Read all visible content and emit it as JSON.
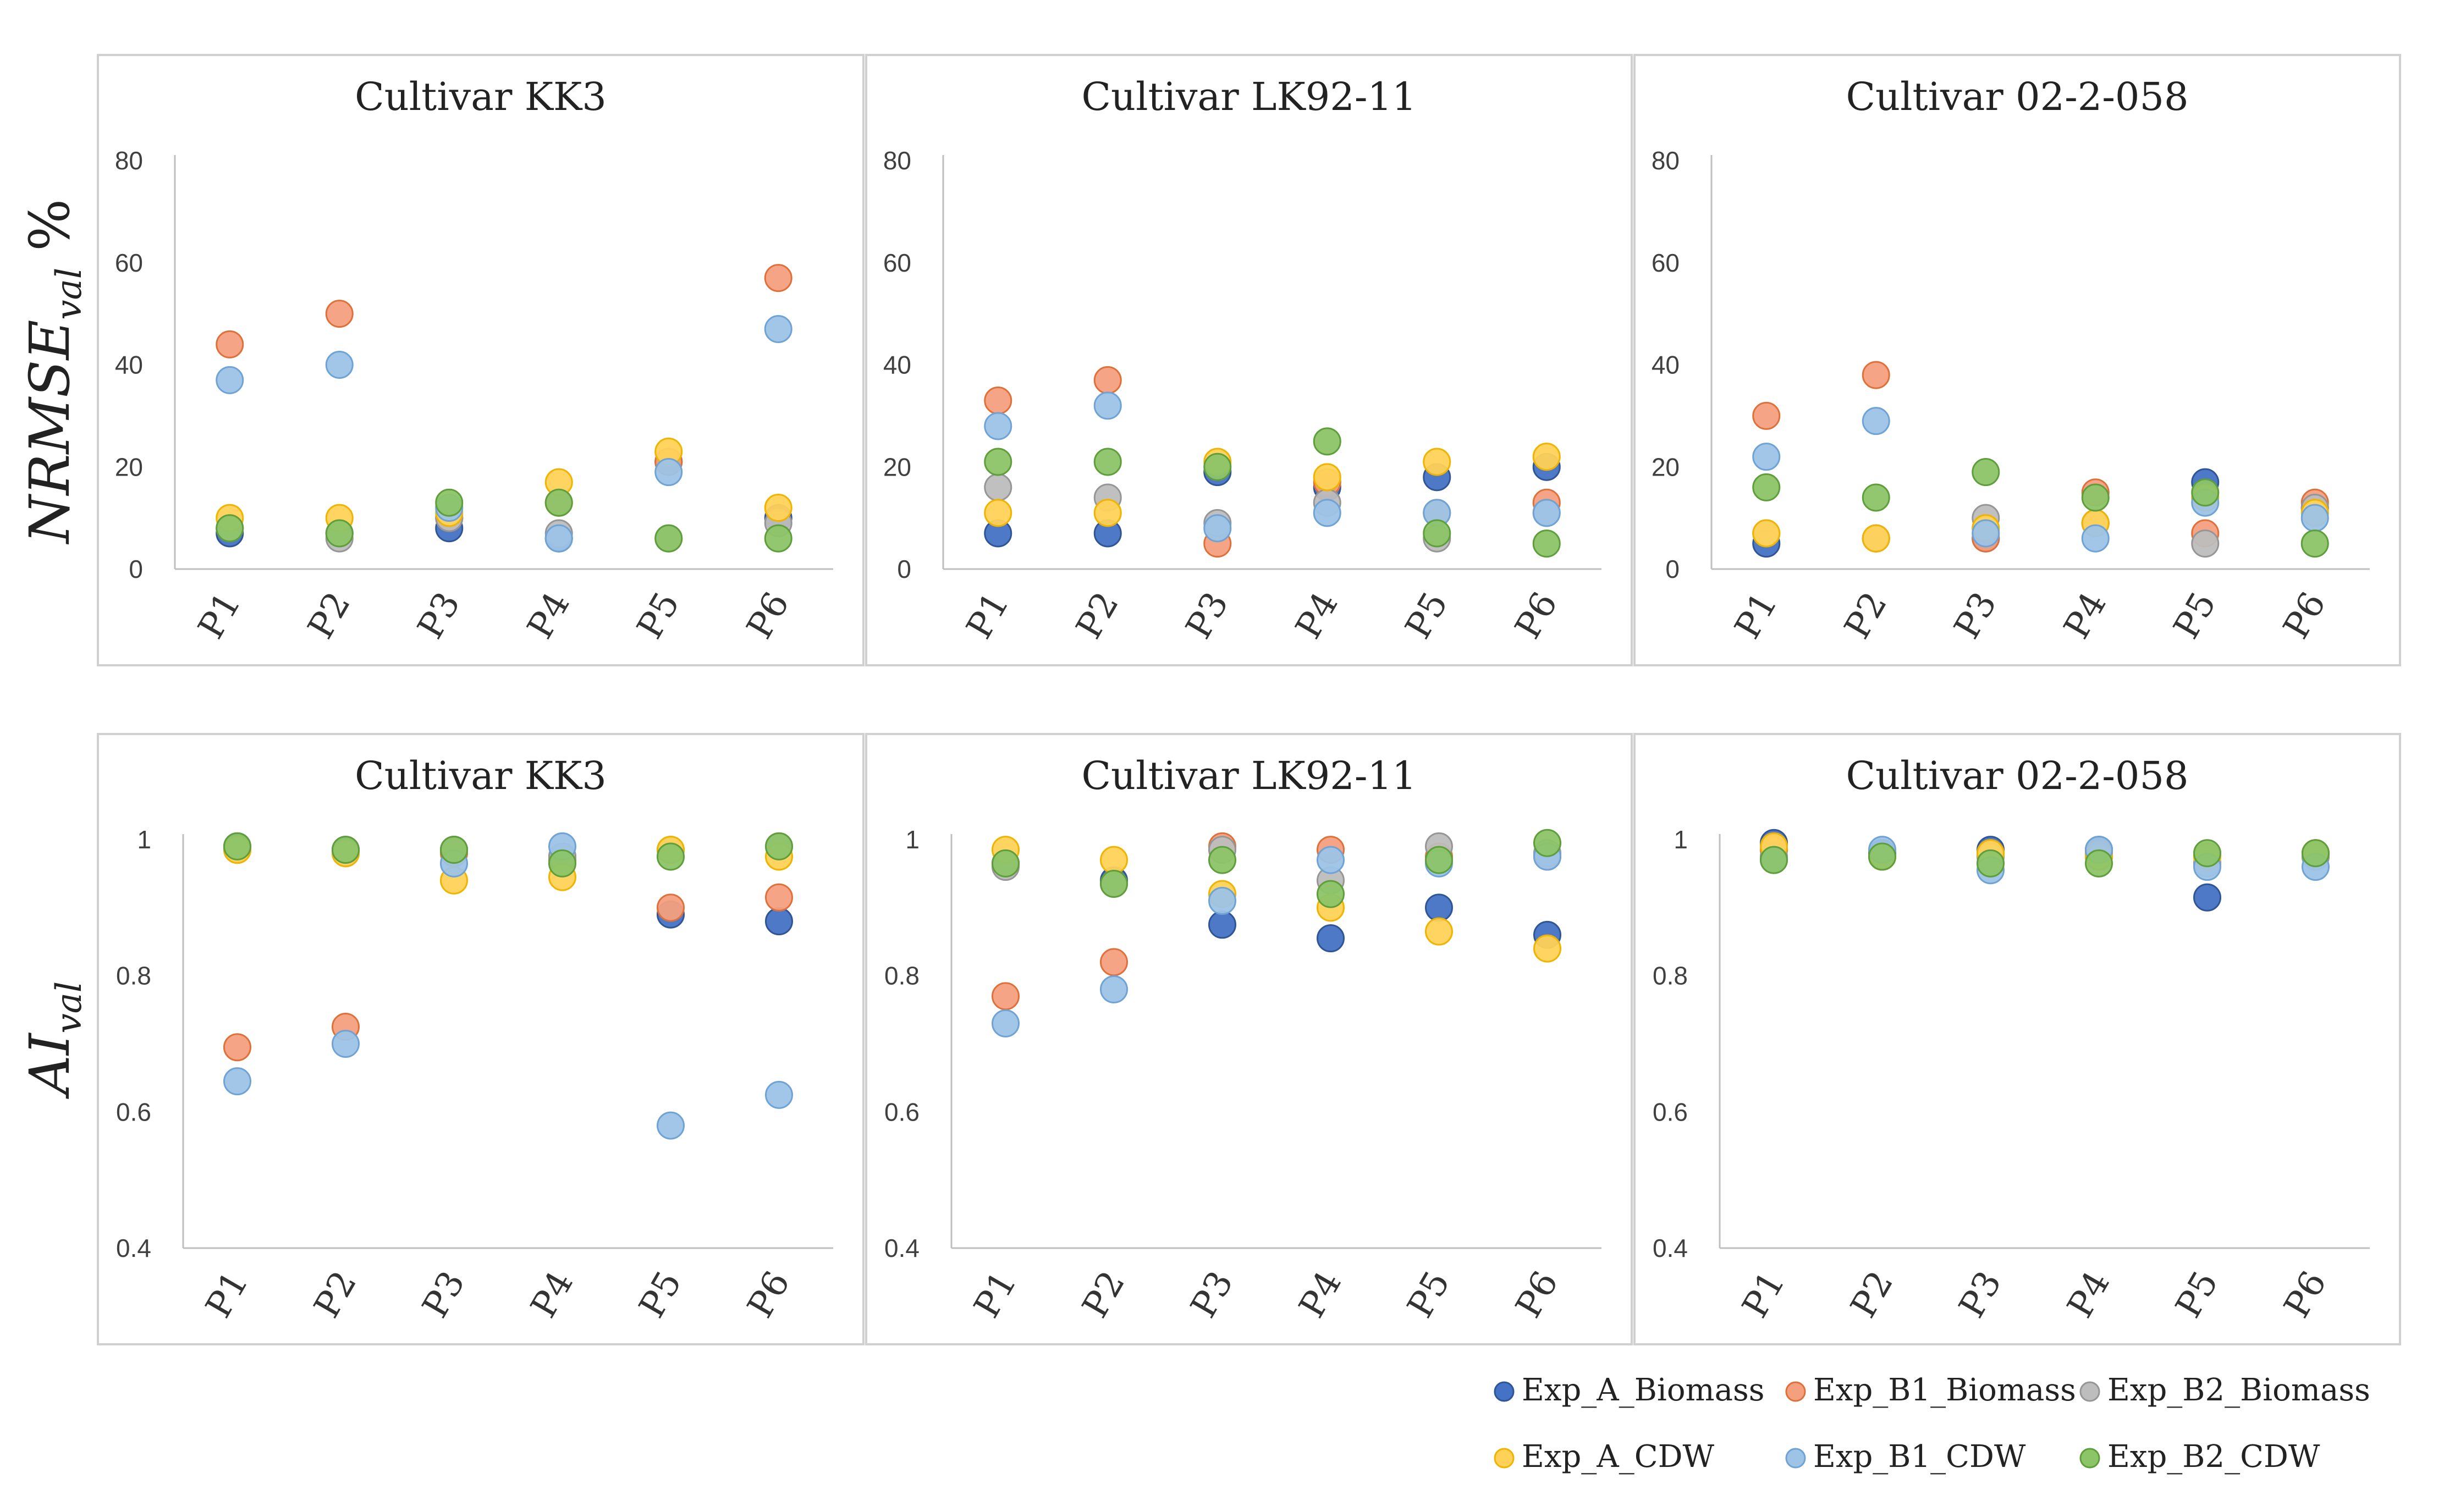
{
  "series_info": [
    {
      "key": "A_Bio",
      "name": "Exp_A_Biomass",
      "color": "#4472C4",
      "edge": "#2F5597"
    },
    {
      "key": "B1_Bio",
      "name": "Exp_B1_Biomass",
      "color": "#F4A07E",
      "edge": "#E0703A"
    },
    {
      "key": "B2_Bio",
      "name": "Exp_B2_Biomass",
      "color": "#BDBDBD",
      "edge": "#969696"
    },
    {
      "key": "A_CDW",
      "name": "Exp_A_CDW",
      "color": "#FFD257",
      "edge": "#F0B400"
    },
    {
      "key": "B1_CDW",
      "name": "Exp_B1_CDW",
      "color": "#9DC3E6",
      "edge": "#6FA3D6"
    },
    {
      "key": "B2_CDW",
      "name": "Exp_B2_CDW",
      "color": "#8CC468",
      "edge": "#5E9E3B"
    }
  ],
  "ylabels": {
    "top": {
      "main": "NRMSE",
      "sub": "val",
      "unit": "%"
    },
    "bottom": {
      "main": "AI",
      "sub": "val"
    }
  },
  "chart_data": [
    {
      "type": "scatter",
      "title": "Cultivar KK3",
      "categories": [
        "P1",
        "P2",
        "P3",
        "P4",
        "P5",
        "P6"
      ],
      "ylim": [
        0,
        80
      ],
      "yticks": [
        "0",
        "20",
        "40",
        "60",
        "80"
      ],
      "series": [
        {
          "name": "Exp_A_Biomass",
          "values": [
            7,
            7,
            8,
            6,
            21,
            10
          ]
        },
        {
          "name": "Exp_B1_Biomass",
          "values": [
            44,
            50,
            10,
            13,
            21,
            57
          ]
        },
        {
          "name": "Exp_B2_Biomass",
          "values": [
            8,
            6,
            10,
            7,
            6,
            9
          ]
        },
        {
          "name": "Exp_A_CDW",
          "values": [
            10,
            10,
            11,
            17,
            23,
            12
          ]
        },
        {
          "name": "Exp_B1_CDW",
          "values": [
            37,
            40,
            12,
            6,
            19,
            47
          ]
        },
        {
          "name": "Exp_B2_CDW",
          "values": [
            8,
            7,
            13,
            13,
            6,
            6
          ]
        }
      ]
    },
    {
      "type": "scatter",
      "title": "Cultivar LK92-11",
      "categories": [
        "P1",
        "P2",
        "P3",
        "P4",
        "P5",
        "P6"
      ],
      "ylim": [
        0,
        80
      ],
      "yticks": [
        "0",
        "20",
        "40",
        "60",
        "80"
      ],
      "series": [
        {
          "name": "Exp_A_Biomass",
          "values": [
            7,
            7,
            19,
            16,
            18,
            20
          ]
        },
        {
          "name": "Exp_B1_Biomass",
          "values": [
            33,
            37,
            5,
            17,
            11,
            13
          ]
        },
        {
          "name": "Exp_B2_Biomass",
          "values": [
            16,
            14,
            9,
            13,
            6,
            11
          ]
        },
        {
          "name": "Exp_A_CDW",
          "values": [
            11,
            11,
            21,
            18,
            21,
            22
          ]
        },
        {
          "name": "Exp_B1_CDW",
          "values": [
            28,
            32,
            8,
            11,
            11,
            11
          ]
        },
        {
          "name": "Exp_B2_CDW",
          "values": [
            21,
            21,
            20,
            25,
            7,
            5
          ]
        }
      ]
    },
    {
      "type": "scatter",
      "title": "Cultivar 02-2-058",
      "categories": [
        "P1",
        "P2",
        "P3",
        "P4",
        "P5",
        "P6"
      ],
      "ylim": [
        0,
        80
      ],
      "yticks": [
        "0",
        "20",
        "40",
        "60",
        "80"
      ],
      "series": [
        {
          "name": "Exp_A_Biomass",
          "values": [
            5,
            6,
            6,
            9,
            17,
            12
          ]
        },
        {
          "name": "Exp_B1_Biomass",
          "values": [
            30,
            38,
            6,
            15,
            7,
            13
          ]
        },
        {
          "name": "Exp_B2_Biomass",
          "values": [
            7,
            6,
            10,
            9,
            5,
            12
          ]
        },
        {
          "name": "Exp_A_CDW",
          "values": [
            7,
            6,
            8,
            9,
            14,
            11
          ]
        },
        {
          "name": "Exp_B1_CDW",
          "values": [
            22,
            29,
            7,
            6,
            13,
            10
          ]
        },
        {
          "name": "Exp_B2_CDW",
          "values": [
            16,
            14,
            19,
            14,
            15,
            5
          ]
        }
      ]
    },
    {
      "type": "scatter",
      "title": "Cultivar KK3",
      "categories": [
        "P1",
        "P2",
        "P3",
        "P4",
        "P5",
        "P6"
      ],
      "ylim": [
        0.4,
        1.0
      ],
      "yticks": [
        "0.4",
        "0.6",
        "0.8",
        "1"
      ],
      "series": [
        {
          "name": "Exp_A_Biomass",
          "values": [
            0.99,
            0.985,
            0.985,
            0.975,
            0.89,
            0.88
          ]
        },
        {
          "name": "Exp_B1_Biomass",
          "values": [
            0.695,
            0.725,
            0.98,
            0.97,
            0.9,
            0.915
          ]
        },
        {
          "name": "Exp_B2_Biomass",
          "values": [
            0.985,
            0.98,
            0.985,
            0.975,
            0.985,
            0.99
          ]
        },
        {
          "name": "Exp_A_CDW",
          "values": [
            0.985,
            0.98,
            0.94,
            0.945,
            0.985,
            0.975
          ]
        },
        {
          "name": "Exp_B1_CDW",
          "values": [
            0.645,
            0.7,
            0.965,
            0.99,
            0.58,
            0.625
          ]
        },
        {
          "name": "Exp_B2_CDW",
          "values": [
            0.99,
            0.985,
            0.985,
            0.965,
            0.975,
            0.99
          ]
        }
      ]
    },
    {
      "type": "scatter",
      "title": "Cultivar LK92-11",
      "categories": [
        "P1",
        "P2",
        "P3",
        "P4",
        "P5",
        "P6"
      ],
      "ylim": [
        0.4,
        1.0
      ],
      "yticks": [
        "0.4",
        "0.6",
        "0.8",
        "1"
      ],
      "series": [
        {
          "name": "Exp_A_Biomass",
          "values": [
            0.965,
            0.94,
            0.875,
            0.855,
            0.9,
            0.86
          ]
        },
        {
          "name": "Exp_B1_Biomass",
          "values": [
            0.77,
            0.82,
            0.99,
            0.985,
            0.975,
            0.975
          ]
        },
        {
          "name": "Exp_B2_Biomass",
          "values": [
            0.96,
            0.935,
            0.985,
            0.94,
            0.99,
            0.98
          ]
        },
        {
          "name": "Exp_A_CDW",
          "values": [
            0.985,
            0.97,
            0.92,
            0.9,
            0.865,
            0.84
          ]
        },
        {
          "name": "Exp_B1_CDW",
          "values": [
            0.73,
            0.78,
            0.91,
            0.97,
            0.965,
            0.975
          ]
        },
        {
          "name": "Exp_B2_CDW",
          "values": [
            0.965,
            0.935,
            0.97,
            0.92,
            0.97,
            0.995
          ]
        }
      ]
    },
    {
      "type": "scatter",
      "title": "Cultivar 02-2-058",
      "categories": [
        "P1",
        "P2",
        "P3",
        "P4",
        "P5",
        "P6"
      ],
      "ylim": [
        0.4,
        1.0
      ],
      "yticks": [
        "0.4",
        "0.6",
        "0.8",
        "1"
      ],
      "series": [
        {
          "name": "Exp_A_Biomass",
          "values": [
            0.995,
            0.98,
            0.985,
            0.985,
            0.915,
            0.975
          ]
        },
        {
          "name": "Exp_B1_Biomass",
          "values": [
            0.985,
            0.975,
            0.98,
            0.98,
            0.965,
            0.98
          ]
        },
        {
          "name": "Exp_B2_Biomass",
          "values": [
            0.975,
            0.975,
            0.975,
            0.975,
            0.965,
            0.975
          ]
        },
        {
          "name": "Exp_A_CDW",
          "values": [
            0.99,
            0.975,
            0.98,
            0.975,
            0.975,
            0.98
          ]
        },
        {
          "name": "Exp_B1_CDW",
          "values": [
            0.97,
            0.985,
            0.955,
            0.985,
            0.96,
            0.96
          ]
        },
        {
          "name": "Exp_B2_CDW",
          "values": [
            0.97,
            0.975,
            0.965,
            0.965,
            0.98,
            0.98
          ]
        }
      ]
    }
  ]
}
